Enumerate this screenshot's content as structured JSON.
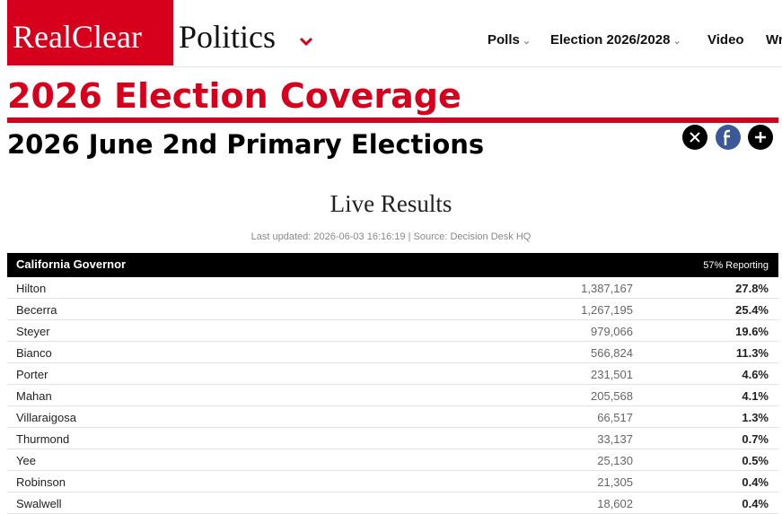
{
  "header": {
    "logo_left": "RealClear",
    "logo_right": "Politics",
    "nav": [
      "Polls",
      "Election 2026/2028",
      "Video",
      "Wr"
    ]
  },
  "page": {
    "title": "2026 Election Coverage",
    "subtitle": "2026 June 2nd Primary Elections"
  },
  "results": {
    "heading": "Live Results",
    "updated": "Last updated: 2026-06-03 16:16:19 | Source: Decision Desk HQ",
    "table": {
      "race": "California Governor",
      "reporting": "57% Reporting",
      "rows": [
        [
          "Hilton",
          "1,387,167",
          "27.8%"
        ],
        [
          "Becerra",
          "1,267,195",
          "25.4%"
        ],
        [
          "Steyer",
          "979,066",
          "19.6%"
        ],
        [
          "Bianco",
          "566,824",
          "11.3%"
        ],
        [
          "Porter",
          "231,501",
          "4.6%"
        ],
        [
          "Mahan",
          "205,568",
          "4.1%"
        ],
        [
          "Villaraigosa",
          "66,517",
          "1.3%"
        ],
        [
          "Thurmond",
          "33,137",
          "0.7%"
        ],
        [
          "Yee",
          "25,130",
          "0.5%"
        ],
        [
          "Robinson",
          "21,305",
          "0.4%"
        ],
        [
          "Swalwell",
          "18,602",
          "0.4%"
        ]
      ]
    }
  }
}
